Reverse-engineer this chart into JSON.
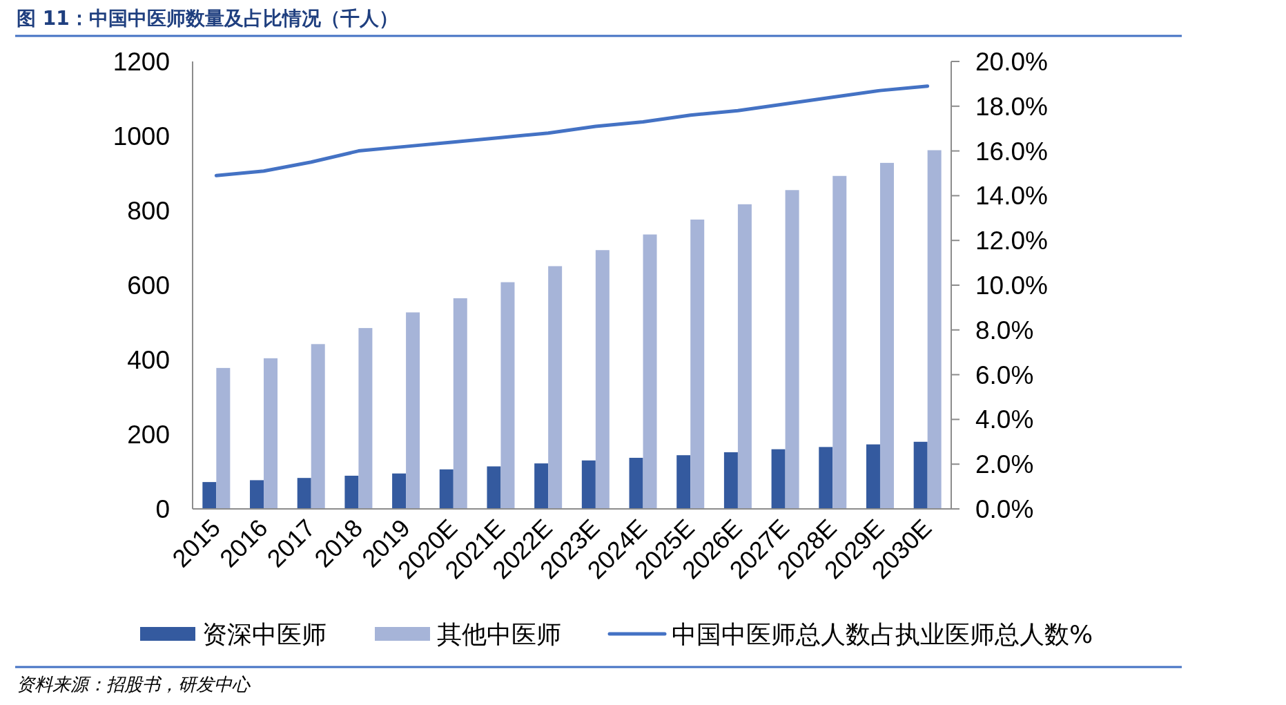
{
  "chart_data": {
    "type": "bar",
    "title": "图 11：中国中医师数量及占比情况（千人）",
    "categories": [
      "2015",
      "2016",
      "2017",
      "2018",
      "2019",
      "2020E",
      "2021E",
      "2022E",
      "2023E",
      "2024E",
      "2025E",
      "2026E",
      "2027E",
      "2028E",
      "2029E",
      "2030E"
    ],
    "series": [
      {
        "name": "资深中医师",
        "color": "#345a9f",
        "values": [
          72,
          77,
          83,
          89,
          95,
          106,
          114,
          122,
          130,
          137,
          144,
          152,
          160,
          166,
          173,
          180
        ]
      },
      {
        "name": "其他中医师",
        "color": "#a6b4d8",
        "values": [
          378,
          404,
          442,
          485,
          527,
          565,
          608,
          651,
          694,
          736,
          776,
          817,
          855,
          893,
          928,
          962
        ]
      },
      {
        "name": "中国中医师总人数占执业医师总人数%",
        "type": "line",
        "axis": "y2",
        "color": "#4472c4",
        "line_style": "solid",
        "marker": "none",
        "values": [
          14.9,
          15.1,
          15.5,
          16.0,
          16.2,
          16.4,
          16.6,
          16.8,
          17.1,
          17.3,
          17.6,
          17.8,
          18.1,
          18.4,
          18.7,
          18.9
        ]
      }
    ],
    "ylim": [
      0,
      1200
    ],
    "yticks": [
      0,
      200,
      400,
      600,
      800,
      1000,
      1200
    ],
    "y2lim": [
      0,
      20
    ],
    "y2ticks": [
      {
        "value": 0,
        "label": "0.0%"
      },
      {
        "value": 2,
        "label": "2.0%"
      },
      {
        "value": 4,
        "label": "4.0%"
      },
      {
        "value": 6,
        "label": "6.0%"
      },
      {
        "value": 8,
        "label": "8.0%"
      },
      {
        "value": 10,
        "label": "10.0%"
      },
      {
        "value": 12,
        "label": "12.0%"
      },
      {
        "value": 14,
        "label": "14.0%"
      },
      {
        "value": 16,
        "label": "16.0%"
      },
      {
        "value": 18,
        "label": "18.0%"
      },
      {
        "value": 20,
        "label": "20.0%"
      }
    ],
    "legend": "bottom",
    "grid": false,
    "annotations": [
      "资料来源：招股书，研发中心"
    ]
  }
}
